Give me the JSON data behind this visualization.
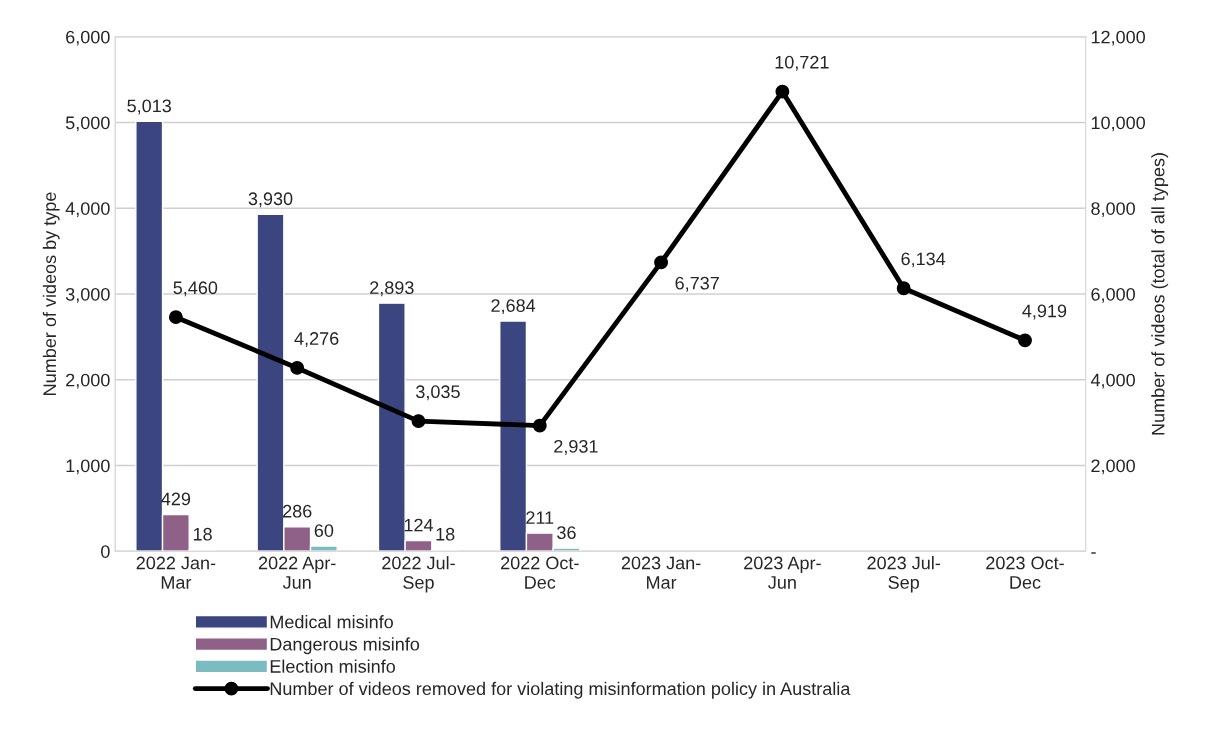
{
  "chart_data": {
    "type": "bar",
    "categories": [
      "2022 Jan-\nMar",
      "2022 Apr-\nJun",
      "2022 Jul-\nSep",
      "2022 Oct-\nDec",
      "2023 Jan-\nMar",
      "2023 Apr-\nJun",
      "2023 Jul-\nSep",
      "2023 Oct-\nDec"
    ],
    "series": [
      {
        "name": "Medical misinfo",
        "color": "#3b4580",
        "values": [
          5013,
          3930,
          2893,
          2684,
          null,
          null,
          null,
          null
        ],
        "value_labels": [
          "5,013",
          "3,930",
          "2,893",
          "2,684",
          null,
          null,
          null,
          null
        ]
      },
      {
        "name": "Dangerous misinfo",
        "color": "#8f6088",
        "values": [
          429,
          286,
          124,
          211,
          null,
          null,
          null,
          null
        ],
        "value_labels": [
          "429",
          "286",
          "124",
          "211",
          null,
          null,
          null,
          null
        ]
      },
      {
        "name": "Election misinfo",
        "color": "#7bbcc2",
        "values": [
          18,
          60,
          18,
          36,
          null,
          null,
          null,
          null
        ],
        "value_labels": [
          "18",
          "60",
          "18",
          "36",
          null,
          null,
          null,
          null
        ]
      },
      {
        "name": "Number of videos removed for violating misinformation policy in Australia",
        "type": "line",
        "axis": "y2",
        "color": "#000000",
        "marker": "circle",
        "values": [
          5460,
          4276,
          3035,
          2931,
          6737,
          10721,
          6134,
          4919
        ],
        "value_labels": [
          "5,460",
          "4,276",
          "3,035",
          "2,931",
          "6,737",
          "10,721",
          "6,134",
          "4,919"
        ]
      }
    ],
    "ylabel": "Number of videos by type",
    "y2label": "Number of videos (total of all types)",
    "ylim": [
      0,
      6000
    ],
    "yticks": [
      {
        "value": 0,
        "label": "0"
      },
      {
        "value": 1000,
        "label": "1,000"
      },
      {
        "value": 2000,
        "label": "2,000"
      },
      {
        "value": 3000,
        "label": "3,000"
      },
      {
        "value": 4000,
        "label": "4,000"
      },
      {
        "value": 5000,
        "label": "5,000"
      },
      {
        "value": 6000,
        "label": "6,000"
      }
    ],
    "y2lim": [
      0,
      12000
    ],
    "y2ticks": [
      {
        "value": 0,
        "label": "-"
      },
      {
        "value": 2000,
        "label": "2,000"
      },
      {
        "value": 4000,
        "label": "4,000"
      },
      {
        "value": 6000,
        "label": "6,000"
      },
      {
        "value": 8000,
        "label": "8,000"
      },
      {
        "value": 10000,
        "label": "10,000"
      },
      {
        "value": 12000,
        "label": "12,000"
      }
    ],
    "grid": "y",
    "legend": "bottom"
  }
}
